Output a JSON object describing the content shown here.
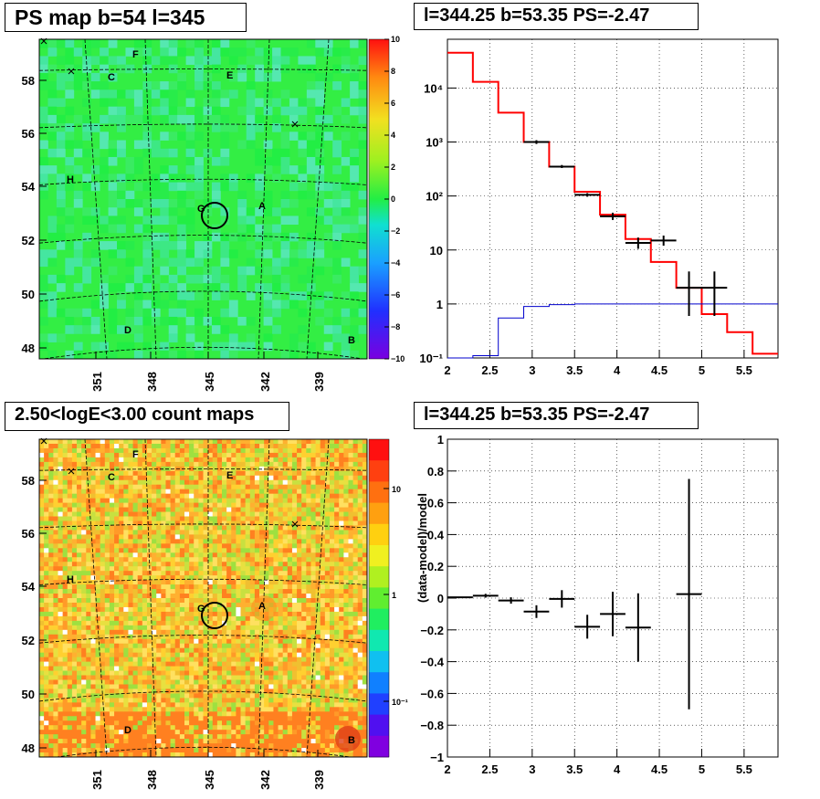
{
  "titles": {
    "ps_map": "PS map b=54 l=345",
    "spectrum": "l=344.25 b=53.35 PS=-2.47",
    "count_map": "2.50<logE<3.00 count maps",
    "residual": "l=344.25 b=53.35 PS=-2.47"
  },
  "colors": {
    "data": "#000000",
    "model": "#ff0000",
    "source": "#0000cc",
    "ps_background": "#33ee44",
    "count_background": "#f2d23a"
  },
  "map_axes": {
    "l_ticks": [
      "351",
      "348",
      "345",
      "342",
      "339"
    ],
    "b_ticks": [
      "58",
      "56",
      "54",
      "52",
      "50",
      "48"
    ],
    "source_labels": [
      "A",
      "B",
      "C",
      "D",
      "E",
      "F",
      "G",
      "H"
    ]
  },
  "ps_colorbar": {
    "ticks": [
      "10",
      "8",
      "6",
      "4",
      "2",
      "0",
      "−2",
      "−4",
      "−6",
      "−8",
      "−10"
    ],
    "range": [
      -10,
      10
    ]
  },
  "count_colorbar": {
    "ticks": [
      "10",
      "1",
      "10⁻¹"
    ],
    "scale": "log"
  },
  "chart_data": [
    {
      "type": "line",
      "panel": "spectrum",
      "x_ticks": [
        "2",
        "2.5",
        "3",
        "3.5",
        "4",
        "4.5",
        "5",
        "5.5"
      ],
      "y_ticks": [
        "10⁻¹",
        "1",
        "10",
        "10²",
        "10³",
        "10⁴"
      ],
      "xlim": [
        2,
        5.9
      ],
      "ylim": [
        0.1,
        80000
      ],
      "yscale": "log",
      "grid": true,
      "model_edges": [
        2.0,
        2.3,
        2.6,
        2.9,
        3.2,
        3.5,
        3.8,
        4.1,
        4.4,
        4.7,
        5.0,
        5.3,
        5.6,
        5.9
      ],
      "model_values": [
        45000,
        13000,
        3500,
        1000,
        350,
        120,
        45,
        16,
        6,
        2.0,
        0.65,
        0.3,
        0.12
      ],
      "source_values": [
        0.07,
        0.11,
        0.55,
        0.9,
        0.97,
        1.0,
        1.0,
        1.0,
        1.0,
        1.0,
        1.0,
        1.0,
        1.0
      ],
      "data_points": [
        {
          "x": 3.05,
          "y": 1000,
          "lo": 920,
          "hi": 1080
        },
        {
          "x": 3.35,
          "y": 350,
          "lo": 330,
          "hi": 375
        },
        {
          "x": 3.65,
          "y": 105,
          "lo": 97,
          "hi": 113
        },
        {
          "x": 3.95,
          "y": 42,
          "lo": 36,
          "hi": 49
        },
        {
          "x": 4.25,
          "y": 13.5,
          "lo": 10.5,
          "hi": 17
        },
        {
          "x": 4.55,
          "y": 15,
          "lo": 12,
          "hi": 18.5
        },
        {
          "x": 4.85,
          "y": 2.0,
          "lo": 0.6,
          "hi": 4.0
        },
        {
          "x": 5.15,
          "y": 2.0,
          "lo": 0.6,
          "hi": 4.0
        }
      ]
    },
    {
      "type": "scatter",
      "panel": "residual",
      "ylabel": "(data-model)/model",
      "x_ticks": [
        "2",
        "2.5",
        "3",
        "3.5",
        "4",
        "4.5",
        "5",
        "5.5"
      ],
      "y_ticks": [
        "1",
        "0.8",
        "0.6",
        "0.4",
        "0.2",
        "0",
        "−0.2",
        "−0.4",
        "−0.6",
        "−0.8",
        "−1"
      ],
      "xlim": [
        2,
        5.9
      ],
      "ylim": [
        -1,
        1
      ],
      "grid": true,
      "points": [
        {
          "x": 2.15,
          "y": 0.005,
          "err": 0.003
        },
        {
          "x": 2.45,
          "y": 0.015,
          "err": 0.012
        },
        {
          "x": 2.75,
          "y": -0.015,
          "err": 0.02
        },
        {
          "x": 3.05,
          "y": -0.085,
          "err": 0.04
        },
        {
          "x": 3.35,
          "y": -0.005,
          "err": 0.055
        },
        {
          "x": 3.65,
          "y": -0.18,
          "err": 0.075
        },
        {
          "x": 3.95,
          "y": -0.1,
          "err": 0.14
        },
        {
          "x": 4.25,
          "y": -0.185,
          "err": 0.215
        },
        {
          "x": 4.85,
          "y": 0.025,
          "err": 0.725
        }
      ]
    }
  ]
}
